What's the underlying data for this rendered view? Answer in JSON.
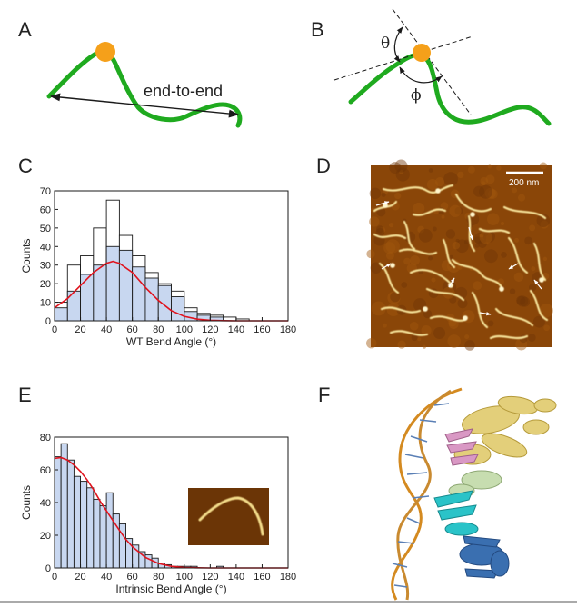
{
  "panels": [
    "A",
    "B",
    "C",
    "D",
    "E",
    "F"
  ],
  "schematic_a": {
    "label": "end-to-end"
  },
  "schematic_b": {
    "theta": "θ",
    "phi": "ϕ"
  },
  "afm": {
    "scale_bar": "200 nm"
  },
  "colors": {
    "dna_line": "#1faa1f",
    "protein": "#f5a01a",
    "bar_fill": "#c8d7f0",
    "bar_stroke": "#1a1a1a",
    "fit_curve": "#e0141e",
    "afm_dark": "#5a2a05",
    "afm_mid": "#a8590e",
    "afm_strand": "#f5e29a"
  },
  "chart_data": [
    {
      "type": "bar",
      "panel": "C",
      "xlabel": "WT Bend Angle (°)",
      "ylabel": "Counts",
      "xlim": [
        0,
        180
      ],
      "ylim": [
        0,
        70
      ],
      "xticks": [
        0,
        20,
        40,
        60,
        80,
        100,
        120,
        140,
        160,
        180
      ],
      "yticks": [
        0,
        10,
        20,
        30,
        40,
        50,
        60,
        70
      ],
      "bin_width": 10,
      "series": [
        {
          "values": [
            10,
            30,
            35,
            50,
            65,
            46,
            35,
            26,
            20,
            16,
            7,
            4,
            3,
            2,
            1,
            0,
            0,
            0
          ]
        },
        {
          "values": [
            7,
            16,
            25,
            30,
            40,
            38,
            29,
            23,
            19,
            13,
            5,
            3,
            2,
            0,
            0,
            0,
            0,
            0
          ]
        }
      ],
      "fit": {
        "x": [
          0,
          10,
          20,
          30,
          40,
          45,
          50,
          60,
          70,
          80,
          90,
          100,
          110,
          120,
          130,
          140,
          150,
          160,
          170,
          180
        ],
        "y": [
          7,
          12,
          19,
          26,
          31,
          32,
          31,
          26,
          18,
          11,
          5.5,
          2.4,
          0.9,
          0.3,
          0.1,
          0,
          0,
          0,
          0,
          0
        ]
      },
      "grid": false
    },
    {
      "type": "bar",
      "panel": "E",
      "xlabel": "Intrinsic Bend Angle (°)",
      "ylabel": "Counts",
      "xlim": [
        0,
        180
      ],
      "ylim": [
        0,
        80
      ],
      "xticks": [
        0,
        20,
        40,
        60,
        80,
        100,
        120,
        140,
        160,
        180
      ],
      "yticks": [
        0,
        20,
        40,
        60,
        80
      ],
      "bin_width": 5,
      "values": [
        68,
        76,
        66,
        56,
        53,
        49,
        42,
        38,
        46,
        33,
        27,
        18,
        14,
        10,
        8,
        6,
        3,
        2,
        1,
        1,
        1,
        1,
        0,
        0,
        0,
        1,
        0,
        0,
        0,
        0,
        0,
        0,
        0,
        0,
        0,
        0
      ],
      "fit": {
        "x": [
          0,
          5,
          10,
          15,
          20,
          25,
          30,
          35,
          40,
          45,
          50,
          55,
          60,
          70,
          80,
          90,
          100,
          110,
          120,
          140,
          160,
          180
        ],
        "y": [
          67,
          67.5,
          66,
          63,
          59,
          54,
          48,
          41,
          35,
          29,
          23,
          17.5,
          13,
          6.5,
          2.8,
          1.0,
          0.3,
          0.1,
          0,
          0,
          0,
          0
        ]
      },
      "grid": false
    }
  ]
}
